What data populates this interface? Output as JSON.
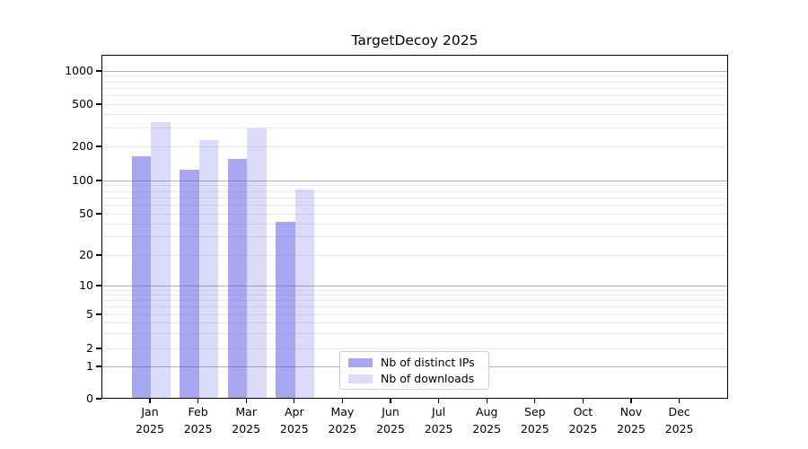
{
  "title": "TargetDecoy 2025",
  "axes": {
    "y_tick_labels": [
      "0",
      "1",
      "2",
      "5",
      "10",
      "20",
      "50",
      "100",
      "200",
      "500",
      "1000"
    ],
    "x_months": [
      "Jan",
      "Feb",
      "Mar",
      "Apr",
      "May",
      "Jun",
      "Jul",
      "Aug",
      "Sep",
      "Oct",
      "Nov",
      "Dec"
    ],
    "x_year": "2025"
  },
  "legend": {
    "items": [
      {
        "label": "Nb of distinct IPs",
        "color": "rgba(80,80,230,0.5)"
      },
      {
        "label": "Nb of downloads",
        "color": "rgba(80,80,230,0.2)"
      }
    ]
  },
  "colors": {
    "bar_ips": "rgba(80,80,230,0.5)",
    "bar_downloads": "rgba(80,80,230,0.2)",
    "grid_major": "#b0b0b0",
    "grid_minor": "#e8e8e8",
    "spine": "#000000"
  },
  "chart_data": {
    "type": "bar",
    "title": "TargetDecoy 2025",
    "categories": [
      "Jan 2025",
      "Feb 2025",
      "Mar 2025",
      "Apr 2025",
      "May 2025",
      "Jun 2025",
      "Jul 2025",
      "Aug 2025",
      "Sep 2025",
      "Oct 2025",
      "Nov 2025",
      "Dec 2025"
    ],
    "series": [
      {
        "name": "Nb of distinct IPs",
        "values": [
          160,
          123,
          151,
          41,
          0,
          0,
          0,
          0,
          0,
          0,
          0,
          0
        ]
      },
      {
        "name": "Nb of downloads",
        "values": [
          335,
          226,
          292,
          81,
          0,
          0,
          0,
          0,
          0,
          0,
          0,
          0
        ]
      }
    ],
    "xlabel": "",
    "ylabel": "",
    "yscale": "symlog",
    "yticks": [
      0,
      1,
      2,
      5,
      10,
      20,
      50,
      100,
      200,
      500,
      1000
    ],
    "ylim": [
      0,
      1400
    ],
    "grid": "horizontal, major and minor",
    "legend_position": "lower center"
  }
}
